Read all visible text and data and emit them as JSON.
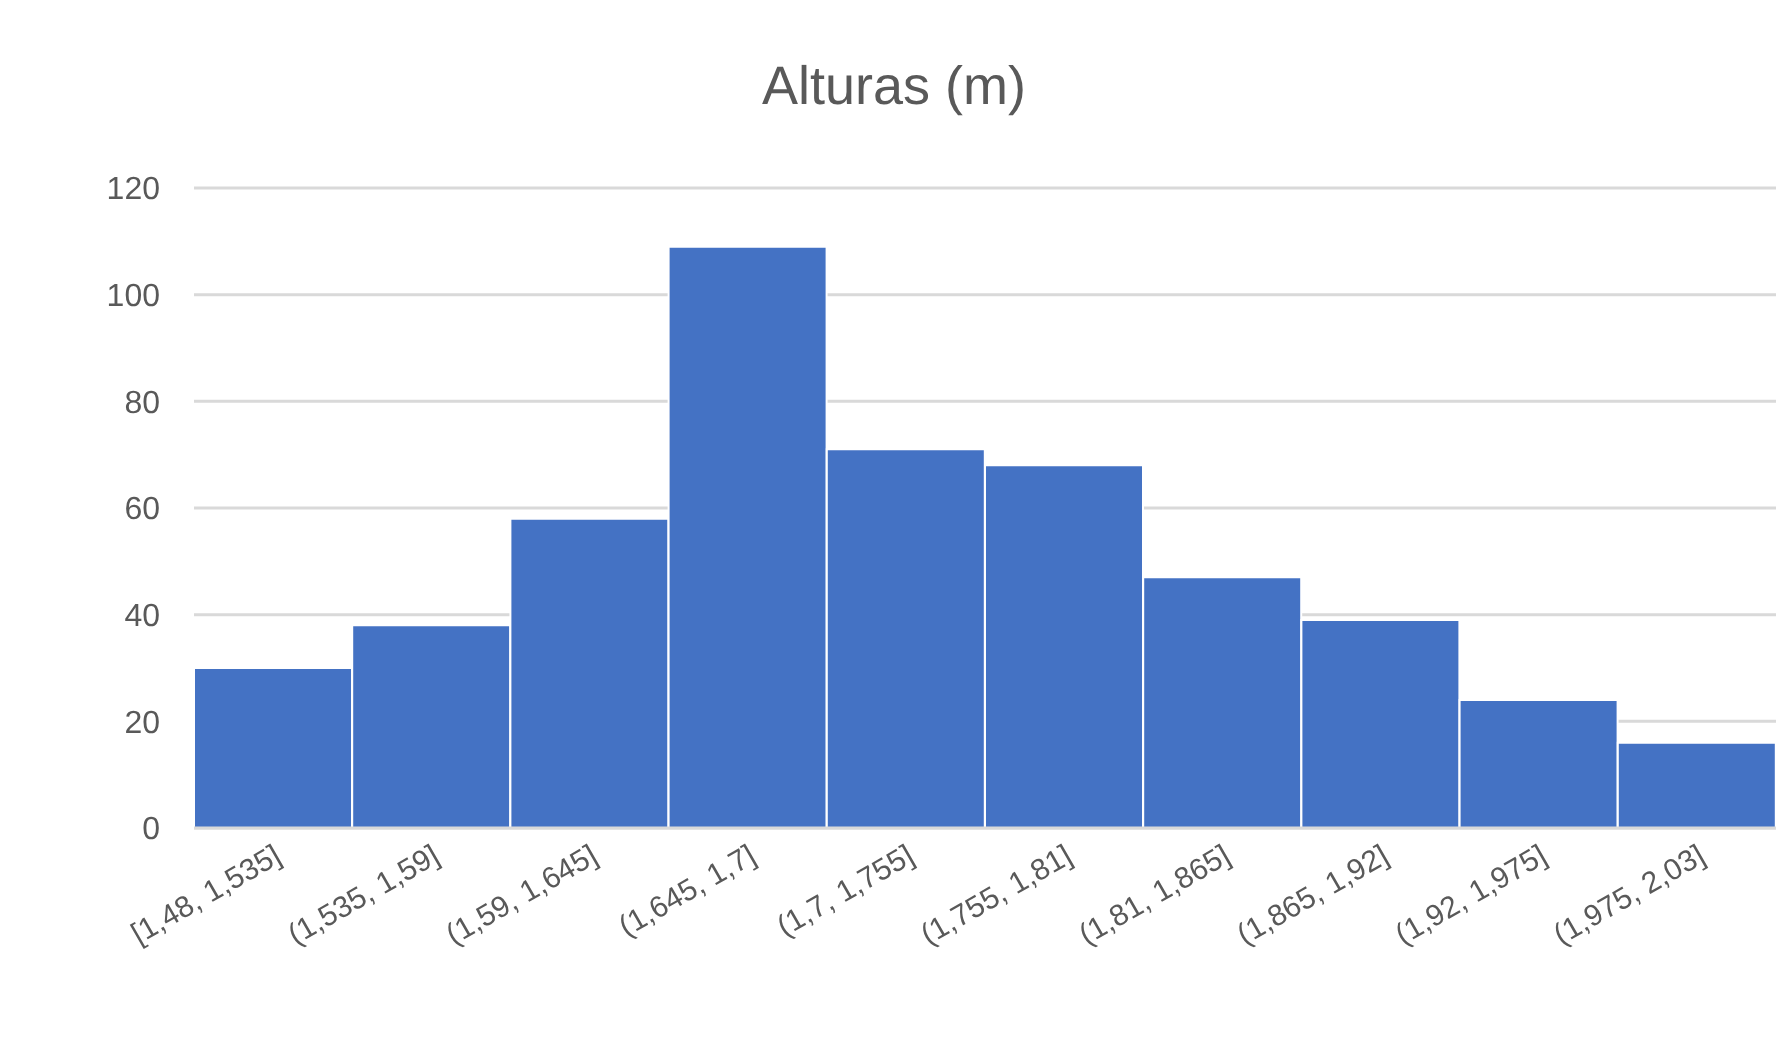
{
  "chart_data": {
    "type": "bar",
    "title": "Alturas (m)",
    "categories": [
      "[1,48, 1,535]",
      "(1,535, 1,59]",
      "(1,59, 1,645]",
      "(1,645, 1,7]",
      "(1,7, 1,755]",
      "(1,755, 1,81]",
      "(1,81, 1,865]",
      "(1,865, 1,92]",
      "(1,92, 1,975]",
      "(1,975, 2,03]"
    ],
    "values": [
      30,
      38,
      58,
      109,
      71,
      68,
      47,
      39,
      24,
      16
    ],
    "color": "#4472c4",
    "ylim": [
      0,
      120
    ],
    "yticks": [
      0,
      20,
      40,
      60,
      80,
      100,
      120
    ],
    "grid": "y"
  }
}
